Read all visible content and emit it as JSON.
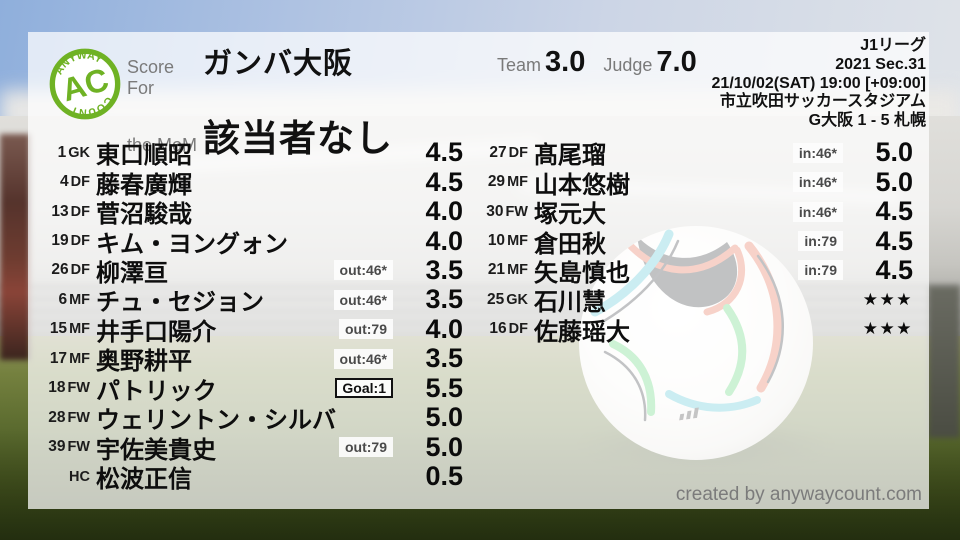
{
  "logo": {
    "ac": "AC",
    "top": "ANYWAY",
    "bottom": "COUNT"
  },
  "header": {
    "score_for_label": "Score For",
    "team_name": "ガンバ大阪",
    "mom_label": "the MoM",
    "mom_value": "該当者なし",
    "team_label": "Team",
    "team_score": "3.0",
    "judge_label": "Judge",
    "judge_score": "7.0"
  },
  "match_info": {
    "league": "J1リーグ",
    "season": "2021 Sec.31",
    "datetime": "21/10/02(SAT) 19:00 [+09:00]",
    "stadium": "市立吹田サッカースタジアム",
    "result": "G大阪 1 - 5 札幌"
  },
  "players_left": [
    {
      "num": "1",
      "pos": "GK",
      "name": "東口順昭",
      "badge": "",
      "badge_type": "",
      "rating": "4.5",
      "is_stars": false
    },
    {
      "num": "4",
      "pos": "DF",
      "name": "藤春廣輝",
      "badge": "",
      "badge_type": "",
      "rating": "4.5",
      "is_stars": false
    },
    {
      "num": "13",
      "pos": "DF",
      "name": "菅沼駿哉",
      "badge": "",
      "badge_type": "",
      "rating": "4.0",
      "is_stars": false
    },
    {
      "num": "19",
      "pos": "DF",
      "name": "キム・ヨングォン",
      "badge": "",
      "badge_type": "",
      "rating": "4.0",
      "is_stars": false
    },
    {
      "num": "26",
      "pos": "DF",
      "name": "柳澤亘",
      "badge": "out:46*",
      "badge_type": "sub",
      "rating": "3.5",
      "is_stars": false
    },
    {
      "num": "6",
      "pos": "MF",
      "name": "チュ・セジョン",
      "badge": "out:46*",
      "badge_type": "sub",
      "rating": "3.5",
      "is_stars": false
    },
    {
      "num": "15",
      "pos": "MF",
      "name": "井手口陽介",
      "badge": "out:79",
      "badge_type": "sub",
      "rating": "4.0",
      "is_stars": false
    },
    {
      "num": "17",
      "pos": "MF",
      "name": "奥野耕平",
      "badge": "out:46*",
      "badge_type": "sub",
      "rating": "3.5",
      "is_stars": false
    },
    {
      "num": "18",
      "pos": "FW",
      "name": "パトリック",
      "badge": "Goal:1",
      "badge_type": "goal",
      "rating": "5.5",
      "is_stars": false
    },
    {
      "num": "28",
      "pos": "FW",
      "name": "ウェリントン・シルバ",
      "badge": "",
      "badge_type": "",
      "rating": "5.0",
      "is_stars": false
    },
    {
      "num": "39",
      "pos": "FW",
      "name": "宇佐美貴史",
      "badge": "out:79",
      "badge_type": "sub",
      "rating": "5.0",
      "is_stars": false
    },
    {
      "num": "",
      "pos": "HC",
      "name": "松波正信",
      "badge": "",
      "badge_type": "",
      "rating": "0.5",
      "is_stars": false
    }
  ],
  "players_right": [
    {
      "num": "27",
      "pos": "DF",
      "name": "髙尾瑠",
      "badge": "in:46*",
      "badge_type": "sub",
      "rating": "5.0",
      "is_stars": false
    },
    {
      "num": "29",
      "pos": "MF",
      "name": "山本悠樹",
      "badge": "in:46*",
      "badge_type": "sub",
      "rating": "5.0",
      "is_stars": false
    },
    {
      "num": "30",
      "pos": "FW",
      "name": "塚元大",
      "badge": "in:46*",
      "badge_type": "sub",
      "rating": "4.5",
      "is_stars": false
    },
    {
      "num": "10",
      "pos": "MF",
      "name": "倉田秋",
      "badge": "in:79",
      "badge_type": "sub",
      "rating": "4.5",
      "is_stars": false
    },
    {
      "num": "21",
      "pos": "MF",
      "name": "矢島慎也",
      "badge": "in:79",
      "badge_type": "sub",
      "rating": "4.5",
      "is_stars": false
    },
    {
      "num": "25",
      "pos": "GK",
      "name": "石川慧",
      "badge": "",
      "badge_type": "",
      "rating": "★★★",
      "is_stars": true
    },
    {
      "num": "16",
      "pos": "DF",
      "name": "佐藤瑶大",
      "badge": "",
      "badge_type": "",
      "rating": "★★★",
      "is_stars": true
    }
  ],
  "footer": {
    "credit": "created by anywaycount.com"
  },
  "colors": {
    "brand_green": "#6fb224",
    "text_black": "#0e0e0e",
    "label_gray": "#7a7a7a"
  }
}
